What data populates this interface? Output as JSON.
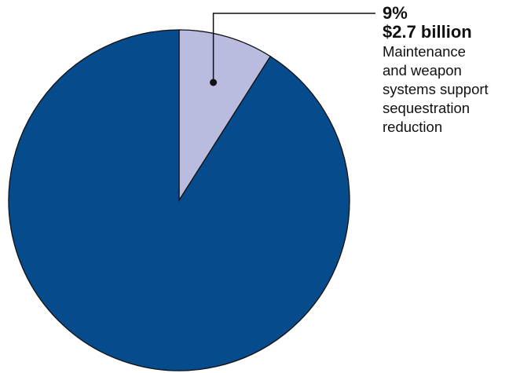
{
  "chart_data": {
    "type": "pie",
    "slices": [
      {
        "value": 9,
        "percent_label": "9%",
        "amount_label": "$2.7 billion",
        "label_lines": [
          "Maintenance",
          "and weapon",
          "systems support",
          "sequestration",
          "reduction"
        ],
        "color": "#b9bbdf"
      },
      {
        "value": 91,
        "color": "#064b8c"
      }
    ],
    "outline_color": "#111111",
    "start_angle": "12 o'clock",
    "direction": "clockwise"
  }
}
